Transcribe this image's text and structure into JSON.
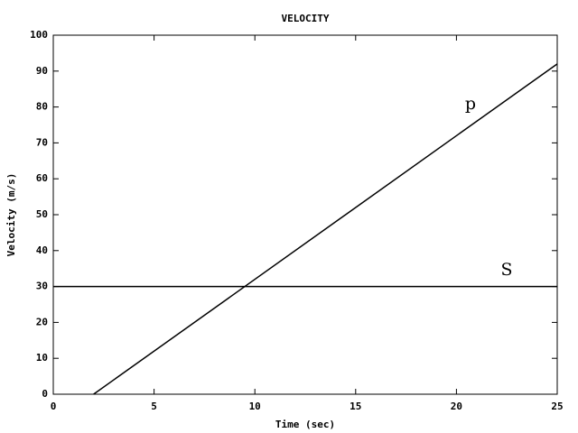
{
  "chart_data": {
    "type": "line",
    "title": "VELOCITY",
    "x_label": "Time (sec)",
    "y_label": "Velocity (m/s)",
    "series": [
      {
        "name": "p",
        "color": "#000000",
        "x": [
          2,
          25
        ],
        "values": [
          0,
          92
        ]
      },
      {
        "name": "S",
        "color": "#000000",
        "x": [
          0,
          25
        ],
        "values": [
          30,
          30
        ]
      }
    ],
    "xlim": [
      0,
      25
    ],
    "xticks": [
      0,
      5,
      10,
      15,
      20,
      25
    ],
    "ylim": [
      0,
      100
    ],
    "yticks": [
      0,
      10,
      20,
      30,
      40,
      50,
      60,
      70,
      80,
      90,
      100
    ],
    "grid": false
  }
}
